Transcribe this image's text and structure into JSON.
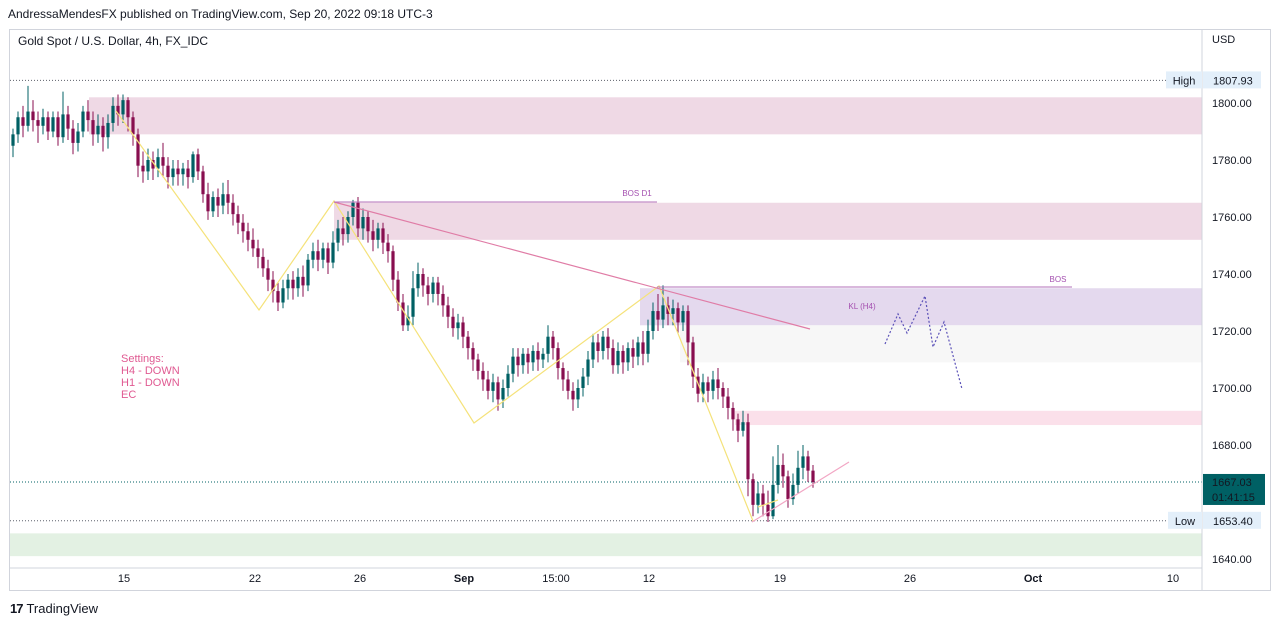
{
  "header": {
    "published": "AndressaMendesFX published on TradingView.com, Sep 20, 2022 09:18 UTC-3",
    "symbol": "Gold Spot / U.S. Dollar, 4h, FX_IDC",
    "currency": "USD"
  },
  "footer": {
    "brand": "TradingView",
    "logo_glyph": "17"
  },
  "chart_data": {
    "type": "candlestick",
    "colors": {
      "up": "#26a69a",
      "down": "#880e4f",
      "bull_candle": "#006064",
      "bear_candle": "#880e4f"
    },
    "x_ticks": [
      "15",
      "22",
      "26",
      "Sep",
      "15:00",
      "12",
      "19",
      "26",
      "Oct",
      "10"
    ],
    "y_ticks": [
      1800,
      1780,
      1760,
      1740,
      1720,
      1700,
      1680,
      1640
    ],
    "y_tick_labels": [
      "1800.00",
      "1780.00",
      "1760.00",
      "1740.00",
      "1720.00",
      "1700.00",
      "1680.00",
      "1640.00"
    ],
    "ylim": [
      1636,
      1818
    ],
    "high": {
      "label": "High",
      "value": "1807.93"
    },
    "low": {
      "label": "Low",
      "value": "1653.40"
    },
    "last": {
      "value": "1667.03",
      "countdown": "01:41:15"
    },
    "zones": [
      {
        "name": "supply-zone-top",
        "from": 1789,
        "to": 1802,
        "color": "#efd9e5"
      },
      {
        "name": "supply-zone-bos-d1",
        "from": 1752,
        "to": 1765,
        "color": "#efd9e5"
      },
      {
        "name": "key-level-h4",
        "from": 1722,
        "to": 1735,
        "color": "#e4d9ee"
      },
      {
        "name": "gray-zone",
        "from": 1709,
        "to": 1722,
        "color": "#f7f7f7"
      },
      {
        "name": "pink-zone",
        "from": 1687,
        "to": 1692,
        "color": "#fbe0ea"
      },
      {
        "name": "demand-zone",
        "from": 1641,
        "to": 1649,
        "color": "#e3f1e3"
      }
    ],
    "annotations": {
      "bos_d1": "BOS D1",
      "bos": "BOS",
      "kl_h4": "KL (H4)",
      "settings": [
        "Settings:",
        "H4 - DOWN",
        "H1 - DOWN",
        "EC"
      ]
    },
    "candles": [
      [
        1785,
        1789,
        1781,
        1791
      ],
      [
        1789,
        1795,
        1786,
        1797
      ],
      [
        1795,
        1792,
        1788,
        1799
      ],
      [
        1792,
        1797,
        1790,
        1806
      ],
      [
        1797,
        1794,
        1790,
        1801
      ],
      [
        1794,
        1792,
        1786,
        1797
      ],
      [
        1792,
        1795,
        1789,
        1798
      ],
      [
        1795,
        1790,
        1787,
        1797
      ],
      [
        1790,
        1795,
        1788,
        1797
      ],
      [
        1795,
        1788,
        1785,
        1797
      ],
      [
        1788,
        1796,
        1786,
        1804
      ],
      [
        1796,
        1791,
        1787,
        1799
      ],
      [
        1791,
        1786,
        1782,
        1794
      ],
      [
        1786,
        1790,
        1783,
        1793
      ],
      [
        1790,
        1797,
        1788,
        1799
      ],
      [
        1797,
        1794,
        1790,
        1801
      ],
      [
        1794,
        1789,
        1785,
        1797
      ],
      [
        1789,
        1792,
        1786,
        1796
      ],
      [
        1792,
        1788,
        1783,
        1795
      ],
      [
        1788,
        1793,
        1784,
        1796
      ],
      [
        1793,
        1799,
        1790,
        1802
      ],
      [
        1799,
        1796,
        1792,
        1803
      ],
      [
        1796,
        1801,
        1793,
        1803
      ],
      [
        1801,
        1795,
        1790,
        1802
      ],
      [
        1795,
        1789,
        1785,
        1797
      ],
      [
        1789,
        1778,
        1774,
        1791
      ],
      [
        1778,
        1776,
        1772,
        1783
      ],
      [
        1776,
        1780,
        1773,
        1784
      ],
      [
        1780,
        1777,
        1773,
        1783
      ],
      [
        1777,
        1781,
        1774,
        1784
      ],
      [
        1781,
        1778,
        1774,
        1786
      ],
      [
        1778,
        1774,
        1770,
        1781
      ],
      [
        1774,
        1777,
        1771,
        1780
      ],
      [
        1777,
        1775,
        1771,
        1780
      ],
      [
        1775,
        1777,
        1771,
        1779
      ],
      [
        1777,
        1774,
        1770,
        1780
      ],
      [
        1774,
        1782,
        1772,
        1783
      ],
      [
        1782,
        1776,
        1773,
        1784
      ],
      [
        1776,
        1768,
        1765,
        1778
      ],
      [
        1768,
        1762,
        1759,
        1772
      ],
      [
        1762,
        1767,
        1760,
        1769
      ],
      [
        1767,
        1764,
        1760,
        1770
      ],
      [
        1764,
        1768,
        1761,
        1772
      ],
      [
        1768,
        1765,
        1761,
        1773
      ],
      [
        1765,
        1761,
        1757,
        1768
      ],
      [
        1761,
        1758,
        1754,
        1764
      ],
      [
        1758,
        1755,
        1751,
        1761
      ],
      [
        1755,
        1752,
        1748,
        1758
      ],
      [
        1752,
        1749,
        1746,
        1756
      ],
      [
        1749,
        1746,
        1742,
        1752
      ],
      [
        1746,
        1742,
        1739,
        1749
      ],
      [
        1742,
        1738,
        1734,
        1745
      ],
      [
        1738,
        1734,
        1730,
        1741
      ],
      [
        1734,
        1730,
        1727,
        1737
      ],
      [
        1730,
        1735,
        1728,
        1738
      ],
      [
        1735,
        1738,
        1731,
        1740
      ],
      [
        1738,
        1735,
        1731,
        1741
      ],
      [
        1735,
        1739,
        1732,
        1742
      ],
      [
        1739,
        1736,
        1732,
        1743
      ],
      [
        1736,
        1745,
        1734,
        1747
      ],
      [
        1745,
        1748,
        1742,
        1751
      ],
      [
        1748,
        1745,
        1741,
        1752
      ],
      [
        1745,
        1749,
        1742,
        1751
      ],
      [
        1749,
        1744,
        1740,
        1751
      ],
      [
        1744,
        1751,
        1742,
        1755
      ],
      [
        1751,
        1756,
        1748,
        1759
      ],
      [
        1756,
        1754,
        1750,
        1760
      ],
      [
        1754,
        1760,
        1751,
        1762
      ],
      [
        1760,
        1765,
        1757,
        1766
      ],
      [
        1765,
        1756,
        1753,
        1767
      ],
      [
        1756,
        1760,
        1752,
        1763
      ],
      [
        1760,
        1755,
        1751,
        1762
      ],
      [
        1755,
        1752,
        1748,
        1759
      ],
      [
        1752,
        1756,
        1749,
        1758
      ],
      [
        1756,
        1751,
        1747,
        1758
      ],
      [
        1751,
        1748,
        1744,
        1754
      ],
      [
        1748,
        1738,
        1734,
        1750
      ],
      [
        1738,
        1730,
        1727,
        1741
      ],
      [
        1730,
        1722,
        1720,
        1733
      ],
      [
        1722,
        1725,
        1720,
        1729
      ],
      [
        1725,
        1735,
        1722,
        1741
      ],
      [
        1735,
        1740,
        1732,
        1744
      ],
      [
        1740,
        1736,
        1732,
        1742
      ],
      [
        1736,
        1733,
        1729,
        1739
      ],
      [
        1733,
        1737,
        1730,
        1739
      ],
      [
        1737,
        1733,
        1729,
        1739
      ],
      [
        1733,
        1729,
        1725,
        1736
      ],
      [
        1729,
        1725,
        1721,
        1732
      ],
      [
        1725,
        1721,
        1718,
        1728
      ],
      [
        1721,
        1723,
        1717,
        1726
      ],
      [
        1723,
        1718,
        1714,
        1725
      ],
      [
        1718,
        1714,
        1710,
        1720
      ],
      [
        1714,
        1710,
        1706,
        1716
      ],
      [
        1710,
        1706,
        1703,
        1712
      ],
      [
        1706,
        1703,
        1699,
        1709
      ],
      [
        1703,
        1699,
        1696,
        1706
      ],
      [
        1699,
        1702,
        1695,
        1705
      ],
      [
        1702,
        1696,
        1692,
        1704
      ],
      [
        1696,
        1700,
        1693,
        1703
      ],
      [
        1700,
        1705,
        1697,
        1708
      ],
      [
        1705,
        1711,
        1702,
        1714
      ],
      [
        1711,
        1708,
        1704,
        1714
      ],
      [
        1708,
        1712,
        1705,
        1714
      ],
      [
        1712,
        1709,
        1705,
        1714
      ],
      [
        1709,
        1713,
        1706,
        1715
      ],
      [
        1713,
        1710,
        1706,
        1716
      ],
      [
        1710,
        1712,
        1707,
        1714
      ],
      [
        1712,
        1718,
        1709,
        1722
      ],
      [
        1718,
        1714,
        1710,
        1720
      ],
      [
        1714,
        1707,
        1703,
        1716
      ],
      [
        1707,
        1703,
        1699,
        1709
      ],
      [
        1703,
        1699,
        1696,
        1706
      ],
      [
        1699,
        1696,
        1692,
        1702
      ],
      [
        1696,
        1700,
        1693,
        1703
      ],
      [
        1700,
        1704,
        1697,
        1707
      ],
      [
        1704,
        1710,
        1701,
        1713
      ],
      [
        1710,
        1716,
        1707,
        1719
      ],
      [
        1716,
        1713,
        1709,
        1719
      ],
      [
        1713,
        1718,
        1710,
        1720
      ],
      [
        1718,
        1714,
        1710,
        1721
      ],
      [
        1714,
        1708,
        1705,
        1717
      ],
      [
        1708,
        1713,
        1705,
        1716
      ],
      [
        1713,
        1709,
        1705,
        1715
      ],
      [
        1709,
        1714,
        1706,
        1716
      ],
      [
        1714,
        1711,
        1707,
        1717
      ],
      [
        1711,
        1716,
        1708,
        1718
      ],
      [
        1716,
        1712,
        1708,
        1720
      ],
      [
        1712,
        1720,
        1709,
        1724
      ],
      [
        1720,
        1727,
        1717,
        1730
      ],
      [
        1727,
        1724,
        1720,
        1733
      ],
      [
        1724,
        1729,
        1721,
        1736
      ],
      [
        1729,
        1726,
        1722,
        1732
      ],
      [
        1726,
        1728,
        1722,
        1731
      ],
      [
        1728,
        1723,
        1719,
        1730
      ],
      [
        1723,
        1727,
        1720,
        1729
      ],
      [
        1727,
        1716,
        1708,
        1729
      ],
      [
        1716,
        1704,
        1700,
        1718
      ],
      [
        1704,
        1698,
        1695,
        1707
      ],
      [
        1698,
        1702,
        1695,
        1705
      ],
      [
        1702,
        1699,
        1695,
        1704
      ],
      [
        1699,
        1703,
        1696,
        1706
      ],
      [
        1703,
        1700,
        1696,
        1707
      ],
      [
        1700,
        1697,
        1693,
        1702
      ],
      [
        1697,
        1693,
        1689,
        1700
      ],
      [
        1693,
        1689,
        1685,
        1695
      ],
      [
        1689,
        1685,
        1681,
        1691
      ],
      [
        1685,
        1688,
        1683,
        1692
      ],
      [
        1688,
        1668,
        1662,
        1691
      ],
      [
        1668,
        1659,
        1655,
        1670
      ],
      [
        1659,
        1663,
        1656,
        1667
      ],
      [
        1663,
        1659,
        1655,
        1666
      ],
      [
        1659,
        1655,
        1653,
        1664
      ],
      [
        1655,
        1666,
        1654,
        1676
      ],
      [
        1666,
        1673,
        1663,
        1680
      ],
      [
        1673,
        1669,
        1665,
        1677
      ],
      [
        1669,
        1661,
        1658,
        1671
      ],
      [
        1661,
        1666,
        1659,
        1670
      ],
      [
        1666,
        1672,
        1663,
        1678
      ],
      [
        1672,
        1676,
        1668,
        1680
      ],
      [
        1676,
        1671,
        1667,
        1678
      ],
      [
        1671,
        1667,
        1665,
        1673
      ]
    ]
  }
}
